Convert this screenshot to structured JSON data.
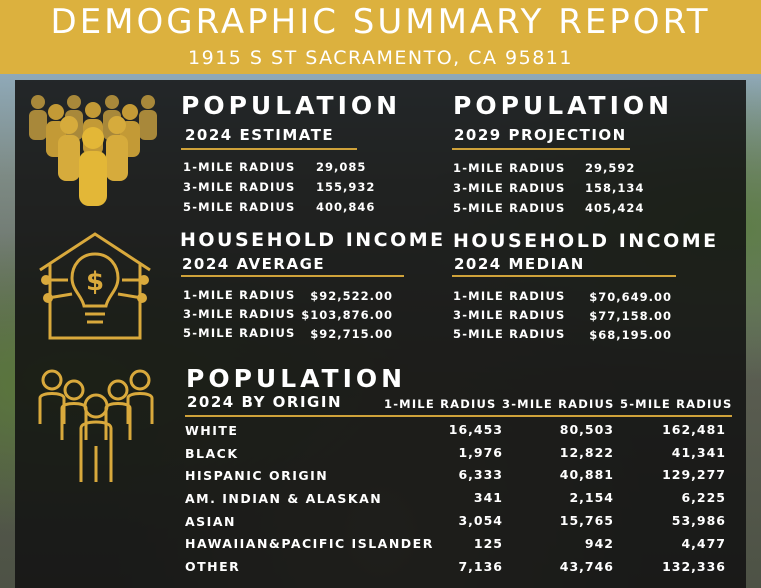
{
  "header": {
    "title": "DEMOGRAPHIC SUMMARY REPORT",
    "address": "1915 S ST SACRAMENTO, CA 95811"
  },
  "colors": {
    "gold": "#dcb13e",
    "panel": "#111111"
  },
  "population_2024": {
    "title": "POPULATION",
    "subtitle": "2024 ESTIMATE",
    "rows": [
      {
        "label": "1-MILE RADIUS",
        "value": "29,085"
      },
      {
        "label": "3-MILE RADIUS",
        "value": "155,932"
      },
      {
        "label": "5-MILE RADIUS",
        "value": "400,846"
      }
    ]
  },
  "population_2029": {
    "title": "POPULATION",
    "subtitle": "2029 PROJECTION",
    "rows": [
      {
        "label": "1-MILE RADIUS",
        "value": "29,592"
      },
      {
        "label": "3-MILE RADIUS",
        "value": "158,134"
      },
      {
        "label": "5-MILE RADIUS",
        "value": "405,424"
      }
    ]
  },
  "income_average": {
    "title": "HOUSEHOLD INCOME",
    "subtitle": "2024 AVERAGE",
    "rows": [
      {
        "label": "1-MILE RADIUS",
        "value": "$92,522.00"
      },
      {
        "label": "3-MILE RADIUS",
        "value": "$103,876.00"
      },
      {
        "label": "5-MILE RADIUS",
        "value": "$92,715.00"
      }
    ]
  },
  "income_median": {
    "title": "HOUSEHOLD INCOME",
    "subtitle": "2024 MEDIAN",
    "rows": [
      {
        "label": "1-MILE RADIUS",
        "value": "$70,649.00"
      },
      {
        "label": "3-MILE RADIUS",
        "value": "$77,158.00"
      },
      {
        "label": "5-MILE RADIUS",
        "value": "$68,195.00"
      }
    ]
  },
  "origin": {
    "title": "POPULATION",
    "subtitle": "2024 BY ORIGIN",
    "columns": [
      "1-MILE RADIUS",
      "3-MILE RADIUS",
      "5-MILE RADIUS"
    ],
    "rows": [
      {
        "label": "WHITE",
        "values": [
          "16,453",
          "80,503",
          "162,481"
        ]
      },
      {
        "label": "BLACK",
        "values": [
          "1,976",
          "12,822",
          "41,341"
        ]
      },
      {
        "label": "HISPANIC ORIGIN",
        "values": [
          "6,333",
          "40,881",
          "129,277"
        ]
      },
      {
        "label": "AM. INDIAN & ALASKAN",
        "values": [
          "341",
          "2,154",
          "6,225"
        ]
      },
      {
        "label": "ASIAN",
        "values": [
          "3,054",
          "15,765",
          "53,986"
        ]
      },
      {
        "label": "HAWAIIAN&PACIFIC ISLANDER",
        "values": [
          "125",
          "942",
          "4,477"
        ]
      },
      {
        "label": "OTHER",
        "values": [
          "7,136",
          "43,746",
          "132,336"
        ]
      }
    ]
  },
  "icons": {
    "population": "crowd-icon",
    "income": "house-lightbulb-dollar-icon",
    "origin": "group-people-icon"
  }
}
